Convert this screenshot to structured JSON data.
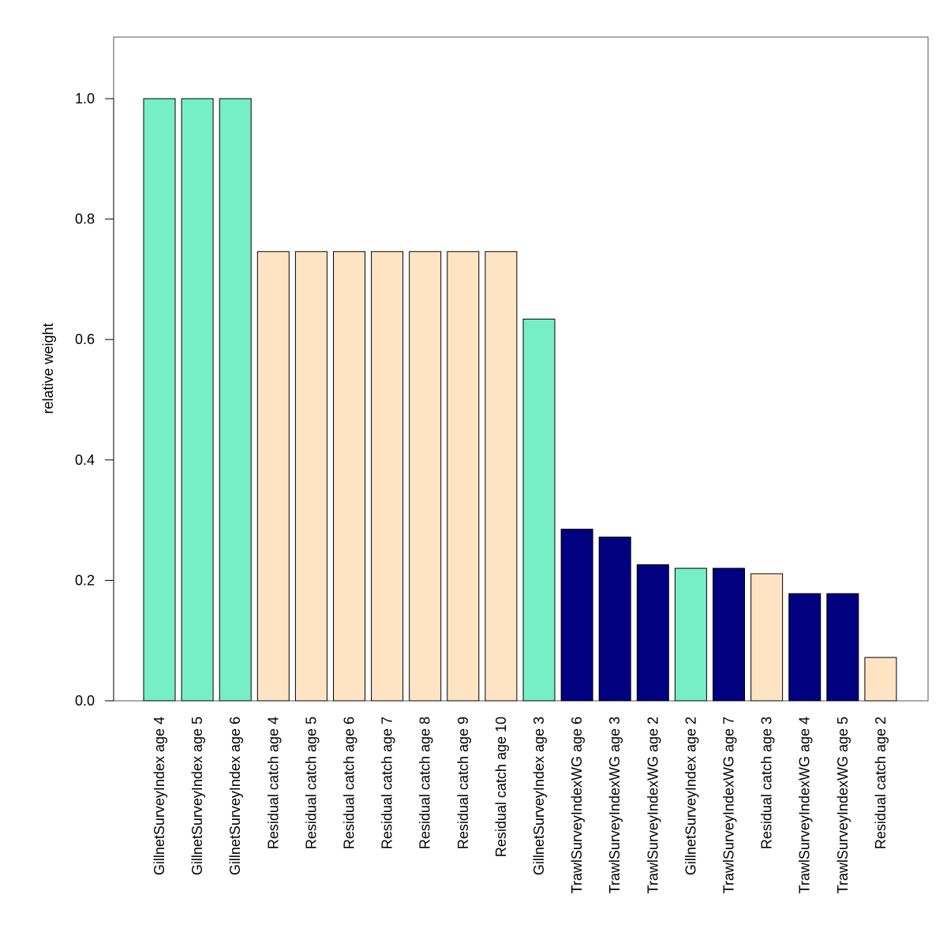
{
  "chart_data": {
    "type": "bar",
    "title": "",
    "xlabel": "",
    "ylabel": "relative weight",
    "ylim": [
      0,
      1.1
    ],
    "yticks": [
      "0.0",
      "0.2",
      "0.4",
      "0.6",
      "0.8",
      "1.0"
    ],
    "grid": false,
    "legend": "none",
    "colors": {
      "GillnetSurveyIndex": "#76EEC6",
      "Residual catch": "#FFE4C4",
      "TrawlSurveyIndexWG": "#000080"
    },
    "categories": [
      "GillnetSurveyIndex age 4",
      "GillnetSurveyIndex age 5",
      "GillnetSurveyIndex age 6",
      "Residual catch age 4",
      "Residual catch age 5",
      "Residual catch age 6",
      "Residual catch age 7",
      "Residual catch age 8",
      "Residual catch age 9",
      "Residual catch age 10",
      "GillnetSurveyIndex age 3",
      "TrawlSurveyIndexWG age 6",
      "TrawlSurveyIndexWG age 3",
      "TrawlSurveyIndexWG age 2",
      "GillnetSurveyIndex age 2",
      "TrawlSurveyIndexWG age 7",
      "Residual catch age 3",
      "TrawlSurveyIndexWG age 4",
      "TrawlSurveyIndexWG age 5",
      "Residual catch age 2"
    ],
    "values": [
      1.0,
      1.0,
      1.0,
      0.746,
      0.746,
      0.746,
      0.746,
      0.746,
      0.746,
      0.746,
      0.634,
      0.285,
      0.272,
      0.226,
      0.22,
      0.22,
      0.211,
      0.178,
      0.178,
      0.072
    ],
    "groups": [
      "GillnetSurveyIndex",
      "GillnetSurveyIndex",
      "GillnetSurveyIndex",
      "Residual catch",
      "Residual catch",
      "Residual catch",
      "Residual catch",
      "Residual catch",
      "Residual catch",
      "Residual catch",
      "GillnetSurveyIndex",
      "TrawlSurveyIndexWG",
      "TrawlSurveyIndexWG",
      "TrawlSurveyIndexWG",
      "GillnetSurveyIndex",
      "TrawlSurveyIndexWG",
      "Residual catch",
      "TrawlSurveyIndexWG",
      "TrawlSurveyIndexWG",
      "Residual catch"
    ]
  }
}
